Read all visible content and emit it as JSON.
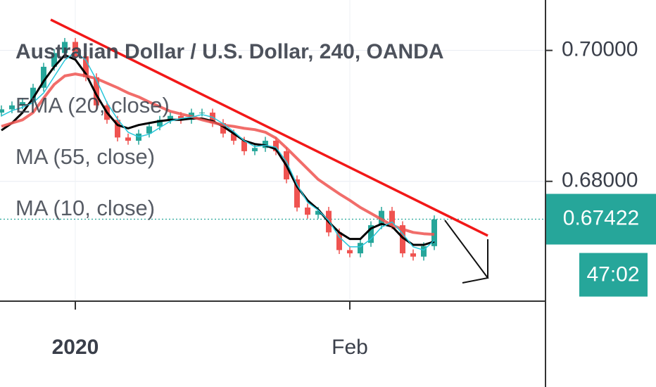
{
  "chart_data": {
    "type": "candlestick",
    "title": "Australian Dollar / U.S. Dollar, 240, OANDA",
    "categories": [
      null,
      null,
      null,
      null,
      null,
      null,
      null,
      "2020",
      null,
      null,
      null,
      null,
      null,
      null,
      null,
      null,
      null,
      null,
      null,
      null,
      null,
      null,
      null,
      null,
      null,
      null,
      null,
      null,
      null,
      null,
      null,
      null,
      null,
      "Feb",
      null,
      null,
      null,
      null,
      null,
      null,
      null,
      null
    ],
    "ohlc": {
      "open": [
        0.6905,
        0.691,
        0.6916,
        0.6921,
        0.6943,
        0.6975,
        0.6996,
        0.7013,
        0.6991,
        0.6959,
        0.6916,
        0.6894,
        0.6867,
        0.6862,
        0.6873,
        0.6884,
        0.6894,
        0.69,
        0.6894,
        0.6905,
        0.6905,
        0.6889,
        0.6873,
        0.6862,
        0.6846,
        0.6851,
        0.6862,
        0.6846,
        0.6803,
        0.676,
        0.6749,
        0.6755,
        0.6722,
        0.6695,
        0.669,
        0.6706,
        0.6733,
        0.6755,
        0.6733,
        0.669,
        0.6685,
        0.6701
      ],
      "high": [
        0.6916,
        0.6922,
        0.6927,
        0.6949,
        0.6981,
        0.7002,
        0.7019,
        0.7019,
        0.6997,
        0.6965,
        0.6922,
        0.69,
        0.6873,
        0.6879,
        0.689,
        0.69,
        0.6906,
        0.6906,
        0.6911,
        0.6911,
        0.6911,
        0.6895,
        0.6879,
        0.6868,
        0.6857,
        0.6868,
        0.6868,
        0.6852,
        0.6809,
        0.6766,
        0.6761,
        0.6761,
        0.6728,
        0.6701,
        0.6712,
        0.6739,
        0.6761,
        0.6761,
        0.6739,
        0.6696,
        0.6707,
        0.6748
      ],
      "low": [
        0.6899,
        0.6904,
        0.691,
        0.6915,
        0.6937,
        0.6969,
        0.699,
        0.6985,
        0.6953,
        0.691,
        0.6888,
        0.6861,
        0.6856,
        0.6856,
        0.6867,
        0.6878,
        0.6888,
        0.6888,
        0.6888,
        0.6899,
        0.6883,
        0.6867,
        0.6856,
        0.684,
        0.684,
        0.6845,
        0.684,
        0.6797,
        0.6754,
        0.6743,
        0.6743,
        0.6716,
        0.6689,
        0.6684,
        0.6684,
        0.67,
        0.6727,
        0.6727,
        0.6684,
        0.6679,
        0.6679,
        0.6695
      ],
      "close": [
        0.691,
        0.6916,
        0.6921,
        0.6943,
        0.6975,
        0.6996,
        0.7013,
        0.6991,
        0.6959,
        0.6916,
        0.6894,
        0.6867,
        0.6862,
        0.6873,
        0.6884,
        0.6894,
        0.69,
        0.6894,
        0.6905,
        0.6905,
        0.6889,
        0.6873,
        0.6862,
        0.6846,
        0.6851,
        0.6862,
        0.6846,
        0.6803,
        0.676,
        0.6749,
        0.6755,
        0.6722,
        0.6695,
        0.669,
        0.6706,
        0.6733,
        0.6755,
        0.6733,
        0.669,
        0.6685,
        0.6701,
        0.6742
      ],
      "up_color": "#26a69a",
      "down_color": "#ef5350"
    },
    "series": [
      {
        "name": "EMA (20, close)",
        "color": "#000000",
        "width": 3,
        "values": [
          0.6878,
          0.6889,
          0.6905,
          0.6927,
          0.6953,
          0.6975,
          0.6993,
          0.6986,
          0.6964,
          0.6932,
          0.6905,
          0.6886,
          0.6881,
          0.6886,
          0.6889,
          0.6892,
          0.6894,
          0.6894,
          0.6896,
          0.6896,
          0.6892,
          0.6884,
          0.6873,
          0.6862,
          0.6857,
          0.6855,
          0.6849,
          0.6824,
          0.6792,
          0.6771,
          0.6757,
          0.6738,
          0.6722,
          0.6712,
          0.6712,
          0.6728,
          0.6735,
          0.6731,
          0.6714,
          0.6703,
          0.6703,
          0.6708
        ]
      },
      {
        "name": "MA (55, close)",
        "color": "#ef5350",
        "width": 4,
        "values": [
          0.6884,
          0.6889,
          0.6894,
          0.6905,
          0.6927,
          0.6948,
          0.6961,
          0.6964,
          0.6961,
          0.6957,
          0.695,
          0.6943,
          0.6935,
          0.6929,
          0.6921,
          0.6914,
          0.6907,
          0.6903,
          0.6899,
          0.6894,
          0.689,
          0.6886,
          0.6884,
          0.6881,
          0.6879,
          0.6875,
          0.6866,
          0.6851,
          0.6835,
          0.6819,
          0.6803,
          0.6792,
          0.6781,
          0.6771,
          0.676,
          0.6751,
          0.6742,
          0.6733,
          0.6727,
          0.6722,
          0.672,
          0.6719
        ]
      },
      {
        "name": "MA (10, close)",
        "color": "#26c6da",
        "width": 1.5,
        "values": [
          0.69,
          0.6908,
          0.6913,
          0.692,
          0.6935,
          0.696,
          0.6985,
          0.6998,
          0.6985,
          0.6955,
          0.692,
          0.6895,
          0.6875,
          0.6868,
          0.6872,
          0.6882,
          0.6892,
          0.6896,
          0.6898,
          0.6902,
          0.6898,
          0.6888,
          0.6876,
          0.6862,
          0.6853,
          0.6855,
          0.6852,
          0.683,
          0.6795,
          0.6768,
          0.6756,
          0.674,
          0.6715,
          0.67,
          0.67,
          0.6712,
          0.673,
          0.6738,
          0.672,
          0.67,
          0.6695,
          0.671
        ]
      }
    ],
    "trendline": {
      "x": [
        4.67,
        46.07
      ],
      "y": [
        0.7047,
        0.6717
      ],
      "color": "#f21818"
    },
    "ylim": [
      0.6617,
      0.7077
    ],
    "yticks": [
      {
        "value": 0.68,
        "label": "0.68000"
      },
      {
        "value": 0.7,
        "label": "0.70000"
      }
    ],
    "grid": true,
    "last_price": {
      "value": 0.67422,
      "label": "0.67422",
      "color": "#26a69a"
    },
    "countdown": "47:02"
  }
}
